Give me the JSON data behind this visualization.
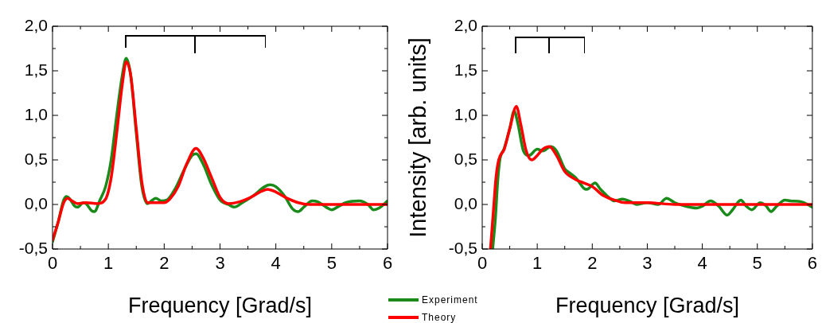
{
  "chart_data": [
    {
      "type": "line",
      "xlabel": "Frequency [Grad/s]",
      "xlim": [
        0,
        6
      ],
      "ylim": [
        -0.5,
        2
      ],
      "xticks": [
        0,
        {
          "value": 0.5,
          "label": null
        },
        1,
        {
          "value": 1.5,
          "label": null
        },
        2,
        {
          "value": 2.5,
          "label": null
        },
        3,
        {
          "value": 3.5,
          "label": null
        },
        4,
        {
          "value": 4.5,
          "label": null
        },
        5,
        {
          "value": 5.5,
          "label": null
        },
        6
      ],
      "yticks": [
        {
          "value": -0.5,
          "label": "-0,5"
        },
        {
          "value": -0.25,
          "label": null
        },
        {
          "value": 0,
          "label": "0,0"
        },
        {
          "value": 0.25,
          "label": null
        },
        {
          "value": 0.5,
          "label": "0,5"
        },
        {
          "value": 0.75,
          "label": null
        },
        {
          "value": 1,
          "label": "1,0"
        },
        {
          "value": 1.25,
          "label": null
        },
        {
          "value": 1.5,
          "label": "1,5"
        },
        {
          "value": 1.75,
          "label": null
        },
        {
          "value": 2,
          "label": "2,0"
        }
      ],
      "grid": false,
      "legend": false,
      "marker": "none",
      "line_style": "solid",
      "series": [
        {
          "color": "#1a8a1a",
          "x": [
            0,
            0.1,
            0.2,
            0.25,
            0.3,
            0.4,
            0.45,
            0.55,
            0.6,
            0.7,
            0.75,
            0.85,
            0.95,
            1.05,
            1.15,
            1.25,
            1.32,
            1.4,
            1.5,
            1.6,
            1.7,
            1.75,
            1.85,
            1.95,
            2.05,
            2.2,
            2.35,
            2.5,
            2.57,
            2.7,
            2.85,
            3,
            3.15,
            3.25,
            3.4,
            3.6,
            3.8,
            3.9,
            4,
            4.15,
            4.3,
            4.4,
            4.5,
            4.65,
            4.75,
            4.9,
            5,
            5.1,
            5.25,
            5.5,
            5.65,
            5.75,
            5.85,
            6
          ],
          "values": [
            -0.42,
            -0.2,
            0.05,
            0.09,
            0.07,
            -0.02,
            -0.03,
            0.02,
            0.01,
            -0.07,
            -0.08,
            0.05,
            0.2,
            0.5,
            1,
            1.45,
            1.64,
            1.45,
            0.8,
            0.2,
            0.01,
            0.03,
            0.07,
            0.04,
            0.05,
            0.18,
            0.38,
            0.55,
            0.57,
            0.45,
            0.22,
            0.05,
            0,
            -0.03,
            0.02,
            0.1,
            0.2,
            0.22,
            0.2,
            0.1,
            -0.05,
            -0.08,
            -0.03,
            0.04,
            0.03,
            -0.03,
            -0.06,
            -0.03,
            0.02,
            0.04,
            0,
            -0.06,
            -0.04,
            0.04
          ]
        },
        {
          "color": "#ff0000",
          "x": [
            0,
            0.1,
            0.2,
            0.27,
            0.35,
            0.45,
            0.6,
            0.8,
            0.95,
            1.05,
            1.15,
            1.25,
            1.32,
            1.4,
            1.5,
            1.6,
            1.7,
            1.8,
            2,
            2.1,
            2.25,
            2.4,
            2.57,
            2.7,
            2.85,
            3,
            3.15,
            3.35,
            3.55,
            3.75,
            3.85,
            4,
            4.2,
            4.4,
            4.6,
            5,
            5.5,
            6
          ],
          "values": [
            -0.4,
            -0.2,
            0.02,
            0.07,
            0.04,
            0.01,
            0.02,
            0.01,
            0.06,
            0.3,
            0.8,
            1.35,
            1.6,
            1.45,
            0.85,
            0.25,
            0.02,
            0.02,
            0.02,
            0.06,
            0.2,
            0.45,
            0.63,
            0.52,
            0.3,
            0.08,
            0.01,
            0.03,
            0.08,
            0.15,
            0.17,
            0.14,
            0.07,
            0.02,
            0,
            0,
            0,
            0
          ]
        }
      ]
    },
    {
      "type": "line",
      "xlabel": "Frequency [Grad/s]",
      "ylabel": "Intensity [arb. units]",
      "xlim": [
        0,
        6
      ],
      "ylim": [
        -0.5,
        2
      ],
      "xticks": [
        0,
        {
          "value": 0.5,
          "label": null
        },
        1,
        {
          "value": 1.5,
          "label": null
        },
        2,
        {
          "value": 2.5,
          "label": null
        },
        3,
        {
          "value": 3.5,
          "label": null
        },
        4,
        {
          "value": 4.5,
          "label": null
        },
        5,
        {
          "value": 5.5,
          "label": null
        },
        6
      ],
      "yticks": [
        {
          "value": -0.5,
          "label": "-0,5"
        },
        {
          "value": -0.25,
          "label": null
        },
        {
          "value": 0,
          "label": "0,0"
        },
        {
          "value": 0.25,
          "label": null
        },
        {
          "value": 0.5,
          "label": "0,5"
        },
        {
          "value": 0.75,
          "label": null
        },
        {
          "value": 1,
          "label": "1,0"
        },
        {
          "value": 1.25,
          "label": null
        },
        {
          "value": 1.5,
          "label": "1,5"
        },
        {
          "value": 1.75,
          "label": null
        },
        {
          "value": 2,
          "label": "2,0"
        }
      ],
      "grid": false,
      "legend": "bottom left",
      "marker": "none",
      "line_style": "solid",
      "series": [
        {
          "name": "Experiment",
          "color": "#1a8a1a",
          "x": [
            0.19,
            0.24,
            0.28,
            0.32,
            0.4,
            0.5,
            0.58,
            0.65,
            0.75,
            0.85,
            1,
            1.1,
            1.25,
            1.35,
            1.5,
            1.6,
            1.7,
            1.85,
            1.9,
            2.05,
            2.15,
            2.3,
            2.4,
            2.55,
            2.7,
            2.8,
            3,
            3.2,
            3.35,
            3.5,
            3.7,
            3.9,
            4,
            4.15,
            4.3,
            4.45,
            4.55,
            4.7,
            4.8,
            4.9,
            5.05,
            5.15,
            5.25,
            5.35,
            5.5,
            5.6,
            5.8,
            6
          ],
          "values": [
            -0.5,
            -0.15,
            0.25,
            0.5,
            0.63,
            0.85,
            1.05,
            0.9,
            0.6,
            0.55,
            0.62,
            0.6,
            0.65,
            0.6,
            0.4,
            0.35,
            0.3,
            0.18,
            0.17,
            0.24,
            0.17,
            0.08,
            0.04,
            0.06,
            0.03,
            0,
            0.02,
            0,
            0.07,
            0.02,
            -0.02,
            -0.04,
            -0.02,
            0.04,
            -0.02,
            -0.12,
            -0.06,
            0.05,
            -0.02,
            -0.06,
            0.02,
            -0.01,
            -0.08,
            -0.02,
            0.05,
            0.04,
            0.03,
            -0.03
          ]
        },
        {
          "name": "Theory",
          "color": "#ff0000",
          "x": [
            0.15,
            0.2,
            0.25,
            0.3,
            0.4,
            0.5,
            0.62,
            0.7,
            0.8,
            0.9,
            1,
            1.1,
            1.22,
            1.35,
            1.5,
            1.7,
            1.85,
            2,
            2.2,
            2.4,
            2.6,
            3,
            3.5,
            4,
            5,
            6
          ],
          "values": [
            -0.5,
            -0.1,
            0.3,
            0.5,
            0.62,
            0.85,
            1.1,
            0.9,
            0.6,
            0.5,
            0.55,
            0.62,
            0.65,
            0.55,
            0.37,
            0.28,
            0.24,
            0.2,
            0.1,
            0.05,
            0.02,
            0.02,
            0,
            0,
            0,
            0
          ]
        }
      ]
    }
  ]
}
